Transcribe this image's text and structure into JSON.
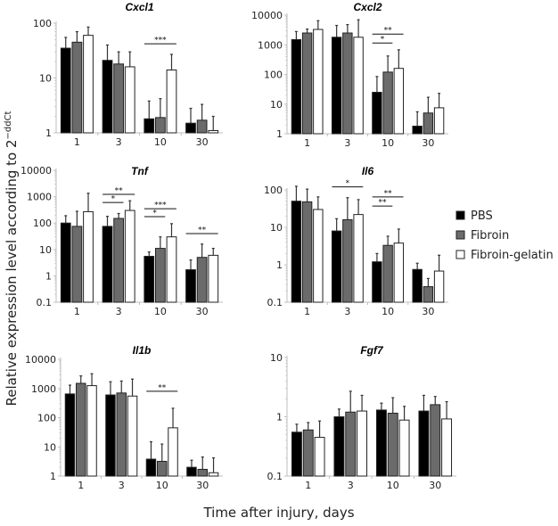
{
  "colors": {
    "PBS": "#000000",
    "Fibroin": "#6b6b6b",
    "Fibroin-gelatin": "#ffffff",
    "axis": "#bfbfbf",
    "error_bar": "#333333"
  },
  "legend": {
    "placement": "right",
    "items": [
      "PBS",
      "Fibroin",
      "Fibroin-gelatin"
    ]
  },
  "ylabel": "Relative expression level according to 2",
  "ylabel_superscript": "−ddCt",
  "xlabel": "Time after injury, days",
  "chart_data": [
    {
      "type": "bar",
      "title": "Cxcl1",
      "yscale": "log",
      "ylim": [
        1,
        100
      ],
      "yticks": [
        "1",
        "10",
        "100"
      ],
      "categories": [
        "1",
        "3",
        "10",
        "30"
      ],
      "series": [
        {
          "name": "PBS",
          "values": [
            35,
            21,
            1.8,
            1.5
          ],
          "error_top": [
            55,
            40,
            3.8,
            2.8
          ]
        },
        {
          "name": "Fibroin",
          "values": [
            45,
            18,
            1.9,
            1.7
          ],
          "error_top": [
            70,
            30,
            4.2,
            3.3
          ]
        },
        {
          "name": "Fibroin-gelatin",
          "values": [
            60,
            16,
            14,
            1.1
          ],
          "error_top": [
            85,
            30,
            27,
            2.0
          ]
        }
      ],
      "significance": [
        {
          "category": "10",
          "from": "PBS",
          "to": "Fibroin-gelatin",
          "label": "***",
          "y": 42
        }
      ]
    },
    {
      "type": "bar",
      "title": "Cxcl2",
      "yscale": "log",
      "ylim": [
        1,
        10000
      ],
      "yticks": [
        "1",
        "10",
        "100",
        "1000",
        "10000"
      ],
      "categories": [
        "1",
        "3",
        "10",
        "30"
      ],
      "series": [
        {
          "name": "PBS",
          "values": [
            1500,
            1800,
            25,
            1.8
          ],
          "error_top": [
            2800,
            4500,
            85,
            5.5
          ]
        },
        {
          "name": "Fibroin",
          "values": [
            2500,
            2500,
            120,
            5
          ],
          "error_top": [
            3400,
            4800,
            420,
            17
          ]
        },
        {
          "name": "Fibroin-gelatin",
          "values": [
            3300,
            1800,
            160,
            7.5
          ],
          "error_top": [
            6500,
            7000,
            680,
            23
          ]
        }
      ],
      "significance": [
        {
          "category": "10",
          "from": "PBS",
          "to": "Fibroin-gelatin",
          "label": "**",
          "y": 2300
        },
        {
          "category": "10",
          "from": "PBS",
          "to": "Fibroin",
          "label": "*",
          "y": 1150
        }
      ]
    },
    {
      "type": "bar",
      "title": "Tnf",
      "yscale": "log",
      "ylim": [
        0.1,
        10000
      ],
      "yticks": [
        "0.1",
        "1",
        "10",
        "100",
        "1000",
        "10000"
      ],
      "categories": [
        "1",
        "3",
        "10",
        "30"
      ],
      "series": [
        {
          "name": "PBS",
          "values": [
            100,
            75,
            5.5,
            1.7
          ],
          "error_top": [
            190,
            180,
            8,
            4
          ]
        },
        {
          "name": "Fibroin",
          "values": [
            75,
            150,
            11,
            5
          ],
          "error_top": [
            280,
            230,
            30,
            16
          ]
        },
        {
          "name": "Fibroin-gelatin",
          "values": [
            270,
            300,
            30,
            6
          ],
          "error_top": [
            1350,
            700,
            95,
            11
          ]
        }
      ],
      "significance": [
        {
          "category": "3",
          "from": "PBS",
          "to": "Fibroin-gelatin",
          "label": "**",
          "y": 1230
        },
        {
          "category": "3",
          "from": "PBS",
          "to": "Fibroin",
          "label": "*",
          "y": 600
        },
        {
          "category": "10",
          "from": "PBS",
          "to": "Fibroin-gelatin",
          "label": "***",
          "y": 350
        },
        {
          "category": "10",
          "from": "PBS",
          "to": "Fibroin",
          "label": "*",
          "y": 175
        },
        {
          "category": "30",
          "from": "PBS",
          "to": "Fibroin-gelatin",
          "label": "**",
          "y": 40
        }
      ]
    },
    {
      "type": "bar",
      "title": "Il6",
      "yscale": "log",
      "ylim": [
        0.1,
        100
      ],
      "yticks": [
        "0.1",
        "1",
        "10",
        "100"
      ],
      "categories": [
        "1",
        "3",
        "10",
        "30"
      ],
      "series": [
        {
          "name": "PBS",
          "values": [
            50,
            8,
            1.2,
            0.75
          ],
          "error_top": [
            125,
            17,
            2,
            1.1
          ]
        },
        {
          "name": "Fibroin",
          "values": [
            48,
            16,
            3.3,
            0.26
          ],
          "error_top": [
            105,
            62,
            5.8,
            0.43
          ]
        },
        {
          "name": "Fibroin-gelatin",
          "values": [
            30,
            22,
            3.8,
            0.68
          ],
          "error_top": [
            65,
            55,
            9,
            1.8
          ]
        }
      ],
      "significance": [
        {
          "category": "3",
          "from": "PBS",
          "to": "Fibroin-gelatin",
          "label": "*",
          "y": 120
        },
        {
          "category": "10",
          "from": "PBS",
          "to": "Fibroin-gelatin",
          "label": "**",
          "y": 65
        },
        {
          "category": "10",
          "from": "PBS",
          "to": "Fibroin",
          "label": "**",
          "y": 37
        }
      ]
    },
    {
      "type": "bar",
      "title": "Il1b",
      "yscale": "log",
      "ylim": [
        1,
        10000
      ],
      "yticks": [
        "1",
        "10",
        "100",
        "1000",
        "10000"
      ],
      "categories": [
        "1",
        "3",
        "10",
        "30"
      ],
      "series": [
        {
          "name": "PBS",
          "values": [
            650,
            600,
            3.8,
            2
          ],
          "error_top": [
            1300,
            1700,
            15,
            3.5
          ]
        },
        {
          "name": "Fibroin",
          "values": [
            1500,
            700,
            3.2,
            1.7
          ],
          "error_top": [
            2700,
            1800,
            12.5,
            4.5
          ]
        },
        {
          "name": "Fibroin-gelatin",
          "values": [
            1250,
            550,
            45,
            1.3
          ],
          "error_top": [
            3200,
            2100,
            210,
            4.2
          ]
        }
      ],
      "significance": [
        {
          "category": "10",
          "from": "PBS",
          "to": "Fibroin-gelatin",
          "label": "**",
          "y": 800
        }
      ]
    },
    {
      "type": "bar",
      "title": "Fgf7",
      "yscale": "log",
      "ylim": [
        0.1,
        10
      ],
      "yticks": [
        "0.1",
        "1",
        "10"
      ],
      "categories": [
        "1",
        "3",
        "10",
        "30"
      ],
      "series": [
        {
          "name": "PBS",
          "values": [
            0.55,
            1.0,
            1.3,
            1.25
          ],
          "error_top": [
            0.75,
            1.35,
            1.7,
            2.3
          ]
        },
        {
          "name": "Fibroin",
          "values": [
            0.6,
            1.2,
            1.15,
            1.6
          ],
          "error_top": [
            0.8,
            2.7,
            2.1,
            2.2
          ]
        },
        {
          "name": "Fibroin-gelatin",
          "values": [
            0.45,
            1.25,
            0.88,
            0.92
          ],
          "error_top": [
            0.85,
            2.3,
            1.5,
            1.8
          ]
        }
      ],
      "significance": []
    }
  ]
}
